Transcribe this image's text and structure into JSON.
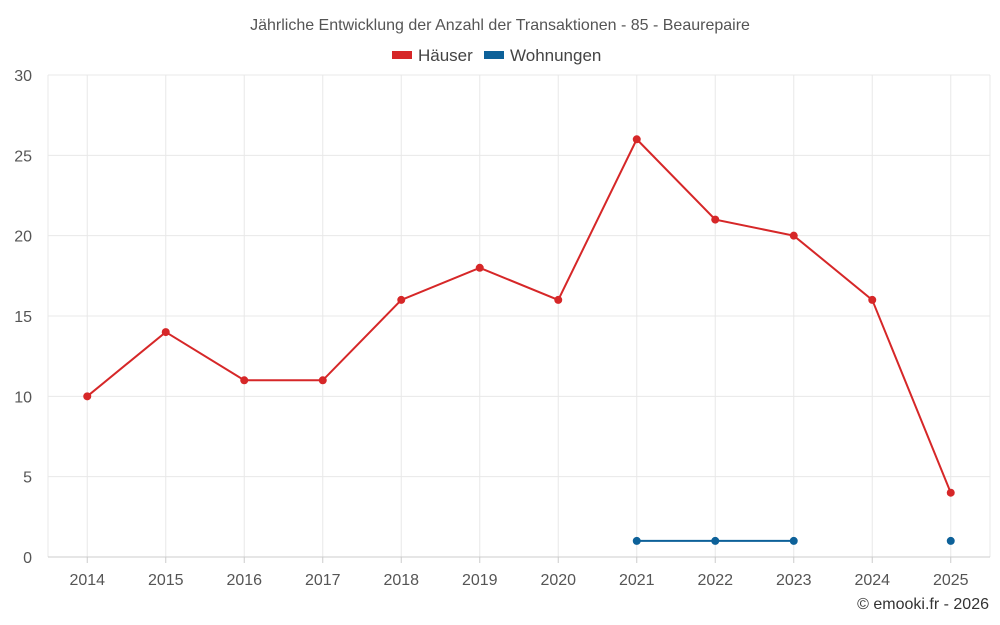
{
  "chart_data": {
    "type": "line",
    "title": "Jährliche Entwicklung der Anzahl der Transaktionen - 85 - Beaurepaire",
    "categories": [
      "2014",
      "2015",
      "2016",
      "2017",
      "2018",
      "2019",
      "2020",
      "2021",
      "2022",
      "2023",
      "2024",
      "2025"
    ],
    "yticks": [
      "0",
      "5",
      "10",
      "15",
      "20",
      "25",
      "30"
    ],
    "ylim": [
      0,
      30
    ],
    "grid": true,
    "legend_position": "top-center",
    "series": [
      {
        "name": "Häuser",
        "color": "#d62728",
        "values": [
          10,
          14,
          11,
          11,
          16,
          18,
          16,
          26,
          21,
          20,
          16,
          4
        ]
      },
      {
        "name": "Wohnungen",
        "color": "#0d6199",
        "values": [
          null,
          null,
          null,
          null,
          null,
          null,
          null,
          1,
          1,
          1,
          null,
          1
        ]
      }
    ]
  },
  "footer": {
    "credit": "© emooki.fr - 2026"
  }
}
